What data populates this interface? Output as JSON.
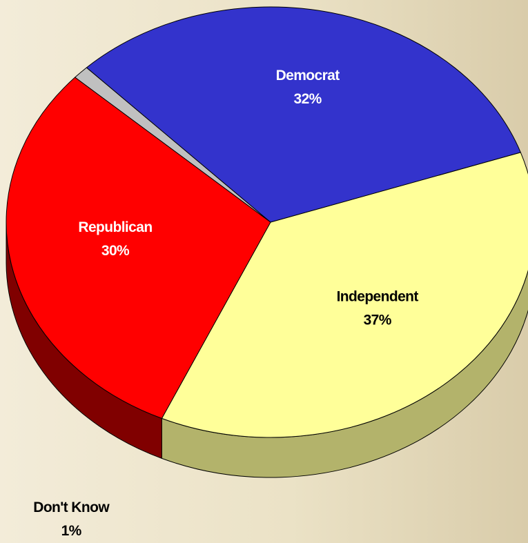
{
  "chart_data": {
    "type": "pie",
    "style": "3d",
    "slices": [
      {
        "label": "Independent",
        "value": 37,
        "display": "37%",
        "color": "#ffff99",
        "side_color": "#b3b36b",
        "label_color": "#000000"
      },
      {
        "label": "Republican",
        "value": 30,
        "display": "30%",
        "color": "#ff0000",
        "side_color": "#800000",
        "label_color": "#ffffff"
      },
      {
        "label": "Don't Know",
        "value": 1,
        "display": "1%",
        "color": "#c0c0c0",
        "side_color": "#666666",
        "label_color": "#000000"
      },
      {
        "label": "Democrat",
        "value": 32,
        "display": "32%",
        "color": "#3333cc",
        "side_color": "#1f2266",
        "label_color": "#ffffff"
      }
    ]
  }
}
